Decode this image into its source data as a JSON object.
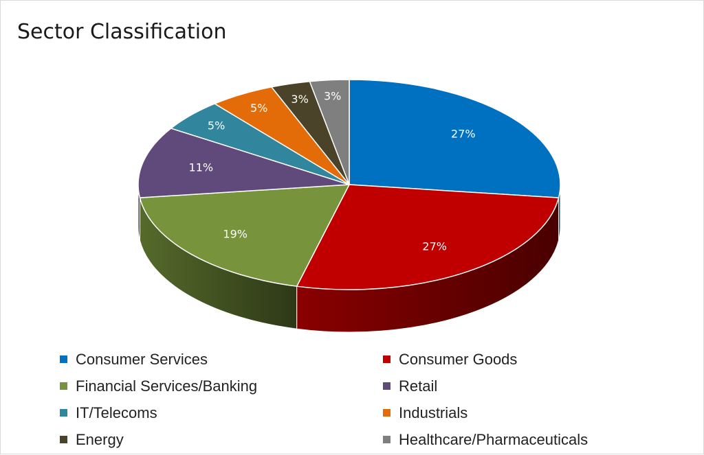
{
  "chart_data": {
    "type": "pie",
    "title": "Sector Classification",
    "slices": [
      {
        "label": "Consumer Services",
        "value": 27,
        "value_label": "27%",
        "color": "#0070c0"
      },
      {
        "label": "Consumer Goods",
        "value": 27,
        "value_label": "27%",
        "color": "#c00000"
      },
      {
        "label": "Financial Services/Banking",
        "value": 19,
        "value_label": "19%",
        "color": "#77933c"
      },
      {
        "label": "Retail",
        "value": 11,
        "value_label": "11%",
        "color": "#604a7b"
      },
      {
        "label": "IT/Telecoms",
        "value": 5,
        "value_label": "5%",
        "color": "#31859c"
      },
      {
        "label": "Industrials",
        "value": 5,
        "value_label": "5%",
        "color": "#e36c09"
      },
      {
        "label": "Energy",
        "value": 3,
        "value_label": "3%",
        "color": "#4a4329"
      },
      {
        "label": "Healthcare/Pharmaceuticals",
        "value": 3,
        "value_label": "3%",
        "color": "#7f7f7f"
      }
    ],
    "legend_position": "bottom",
    "style": "3d"
  }
}
